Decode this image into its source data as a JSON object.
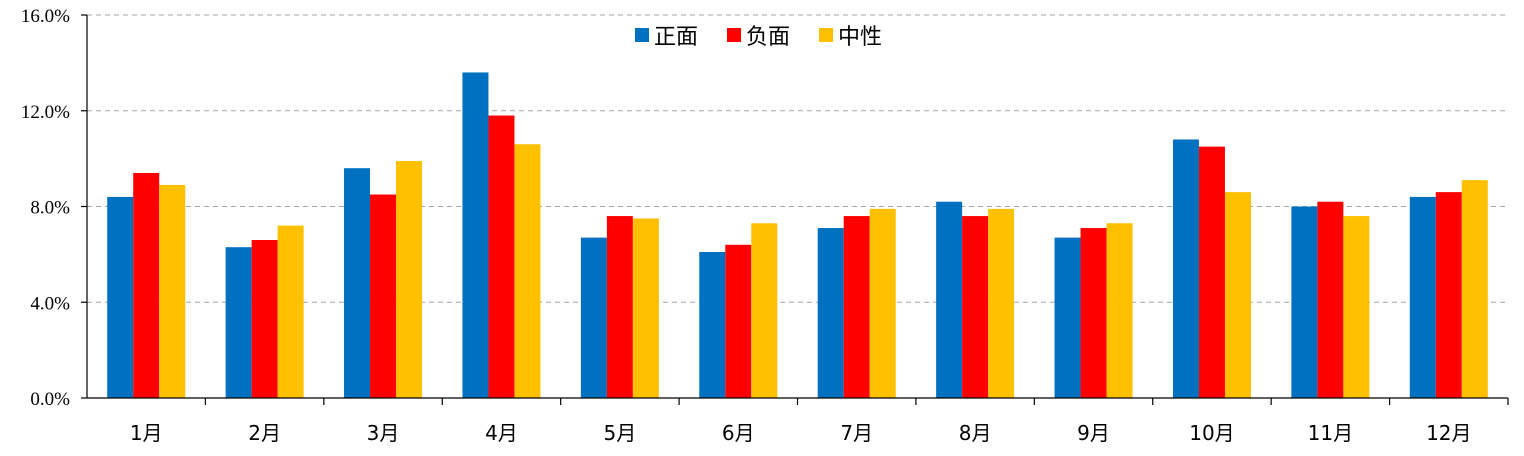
{
  "chart_data": {
    "type": "bar",
    "title": "",
    "xlabel": "",
    "ylabel": "",
    "categories": [
      "1月",
      "2月",
      "3月",
      "4月",
      "5月",
      "6月",
      "7月",
      "8月",
      "9月",
      "10月",
      "11月",
      "12月"
    ],
    "series": [
      {
        "name": "正面",
        "color": "#0070c0",
        "values": [
          8.4,
          6.3,
          9.6,
          13.6,
          6.7,
          6.1,
          7.1,
          8.2,
          6.7,
          10.8,
          8.0,
          8.4
        ]
      },
      {
        "name": "负面",
        "color": "#ff0000",
        "values": [
          9.4,
          6.6,
          8.5,
          11.8,
          7.6,
          6.4,
          7.6,
          7.6,
          7.1,
          10.5,
          8.2,
          8.6
        ]
      },
      {
        "name": "中性",
        "color": "#ffc000",
        "values": [
          8.9,
          7.2,
          9.9,
          10.6,
          7.5,
          7.3,
          7.9,
          7.9,
          7.3,
          8.6,
          7.6,
          9.1
        ]
      }
    ],
    "ylim": [
      0,
      16
    ],
    "yticks": [
      "0.0%",
      "4.0%",
      "8.0%",
      "12.0%",
      "16.0%"
    ],
    "ytick_values": [
      0,
      4,
      8,
      12,
      16
    ],
    "grid": true,
    "legend_position": "top-center"
  }
}
